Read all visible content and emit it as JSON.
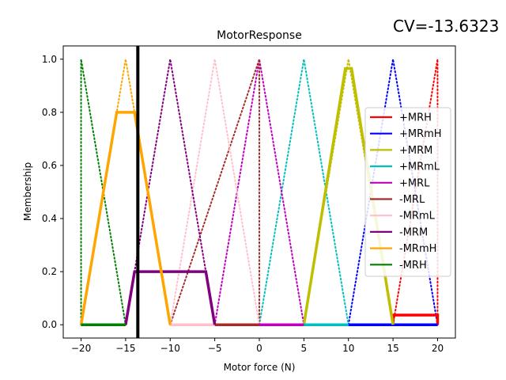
{
  "annotation": {
    "text": "CV=-13.6323"
  },
  "chart_data": {
    "type": "line",
    "title": "MotorResponse",
    "xlabel": "Motor force (N)",
    "ylabel": "Membership",
    "xlim": [
      -22,
      22
    ],
    "ylim": [
      -0.05,
      1.05
    ],
    "xticks": [
      -20,
      -15,
      -10,
      -5,
      0,
      5,
      10,
      15,
      20
    ],
    "yticks": [
      0.0,
      0.2,
      0.4,
      0.6,
      0.8,
      1.0
    ],
    "xtick_labels": [
      "−20",
      "−15",
      "−10",
      "−5",
      "0",
      "5",
      "10",
      "15",
      "20"
    ],
    "ytick_labels": [
      "0.0",
      "0.2",
      "0.4",
      "0.6",
      "0.8",
      "1.0"
    ],
    "grid": false,
    "legend_position": "right",
    "vline": {
      "x": -13.6323,
      "color": "#000000"
    },
    "membership_functions": [
      {
        "color": "#ff0000",
        "x": [
          15,
          20,
          20
        ],
        "y": [
          0,
          1,
          0
        ]
      },
      {
        "color": "#0000ff",
        "x": [
          10,
          15,
          20
        ],
        "y": [
          0,
          1,
          0
        ]
      },
      {
        "color": "#bfbf00",
        "x": [
          5,
          10,
          15
        ],
        "y": [
          0,
          1,
          0
        ]
      },
      {
        "color": "#00bfbf",
        "x": [
          0,
          5,
          10
        ],
        "y": [
          0,
          1,
          0
        ]
      },
      {
        "color": "#bf00bf",
        "x": [
          -5,
          0,
          5
        ],
        "y": [
          0,
          1,
          0
        ]
      },
      {
        "color": "#a52a2a",
        "x": [
          -10,
          0,
          0
        ],
        "y": [
          0,
          1,
          0
        ]
      },
      {
        "color": "#ffc0cb",
        "x": [
          -10,
          -5,
          0
        ],
        "y": [
          0,
          1,
          0
        ]
      },
      {
        "color": "#800080",
        "x": [
          -15,
          -10,
          -5
        ],
        "y": [
          0,
          1,
          0
        ]
      },
      {
        "color": "#ffa500",
        "x": [
          -20,
          -15,
          -10
        ],
        "y": [
          0,
          1,
          0
        ]
      },
      {
        "color": "#008000",
        "x": [
          -20,
          -20,
          -15
        ],
        "y": [
          0,
          1,
          0
        ]
      }
    ],
    "series": [
      {
        "name": "+MRH",
        "color": "#ff0000",
        "x": [
          15,
          15,
          20,
          20
        ],
        "y": [
          0,
          0.0365,
          0.0365,
          0
        ]
      },
      {
        "name": "+MRmH",
        "color": "#0000ff",
        "x": [
          10,
          20
        ],
        "y": [
          0,
          0
        ]
      },
      {
        "name": "+MRM",
        "color": "#bfbf00",
        "x": [
          5,
          9.65,
          10.35,
          15
        ],
        "y": [
          0,
          0.965,
          0.965,
          0
        ]
      },
      {
        "name": "+MRmL",
        "color": "#00bfbf",
        "x": [
          5,
          10
        ],
        "y": [
          0,
          0
        ]
      },
      {
        "name": "+MRL",
        "color": "#bf00bf",
        "x": [
          0,
          5
        ],
        "y": [
          0,
          0
        ]
      },
      {
        "name": "-MRL",
        "color": "#a52a2a",
        "x": [
          -5,
          0
        ],
        "y": [
          0,
          0
        ]
      },
      {
        "name": "-MRmL",
        "color": "#ffc0cb",
        "x": [
          -10,
          -5
        ],
        "y": [
          0,
          0
        ]
      },
      {
        "name": "-MRM",
        "color": "#800080",
        "x": [
          -15,
          -14,
          -6,
          -5
        ],
        "y": [
          0,
          0.2,
          0.2,
          0
        ]
      },
      {
        "name": "-MRmH",
        "color": "#ffa500",
        "x": [
          -20,
          -16,
          -14,
          -10
        ],
        "y": [
          0,
          0.8,
          0.8,
          0
        ]
      },
      {
        "name": "-MRH",
        "color": "#008000",
        "x": [
          -20,
          -15
        ],
        "y": [
          0,
          0
        ]
      }
    ]
  }
}
